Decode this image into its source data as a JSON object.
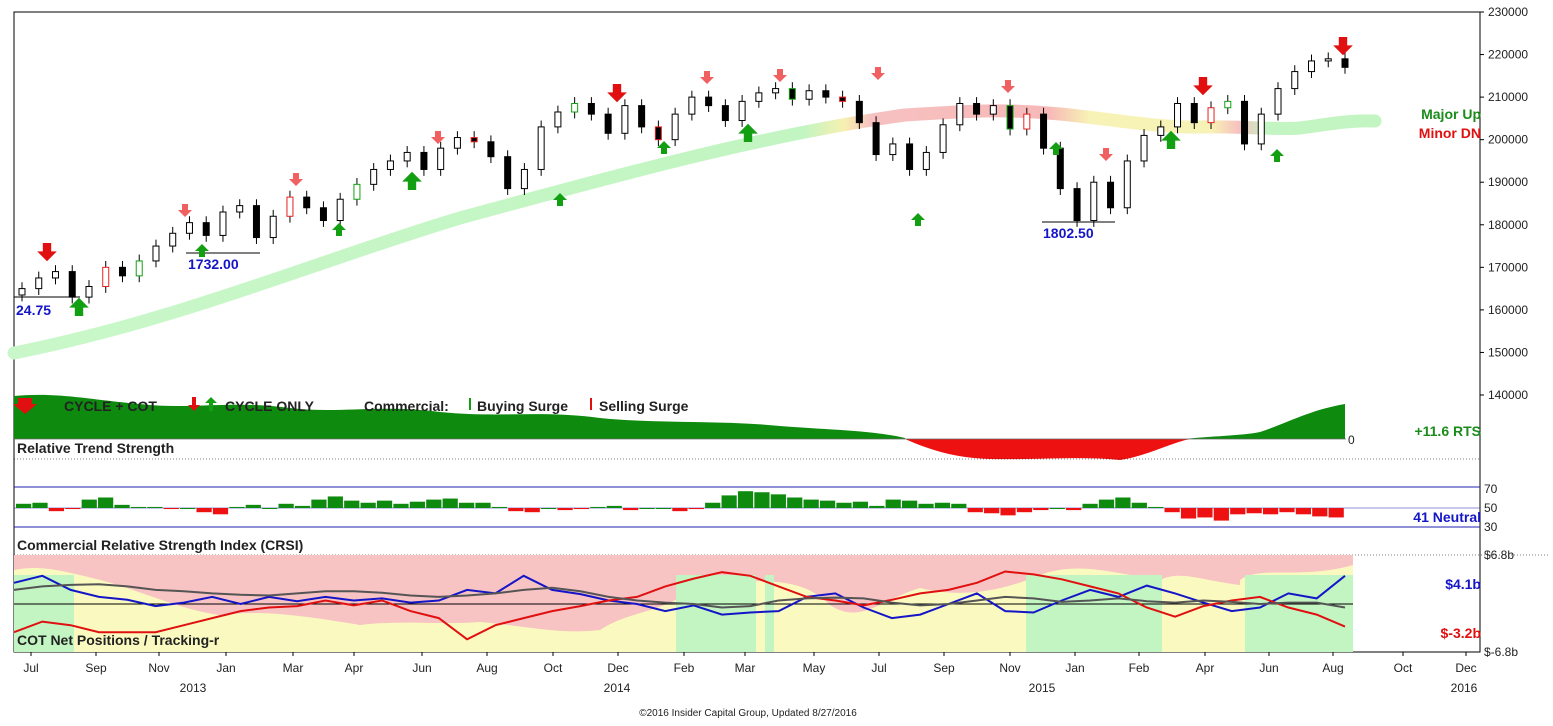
{
  "chart_data": {
    "type": "candlestick",
    "title": "",
    "footer": "©2016 Insider Capital Group, Updated 8/27/2016",
    "price_axis": {
      "ticks": [
        "230000",
        "220000",
        "210000",
        "200000",
        "190000",
        "180000",
        "170000",
        "160000",
        "150000",
        "140000"
      ],
      "ylim": [
        130000,
        230000
      ]
    },
    "time_axis": {
      "months": [
        "Jul",
        "Sep",
        "Nov",
        "Jan",
        "Mar",
        "Apr",
        "Jun",
        "Aug",
        "Oct",
        "Dec",
        "Feb",
        "Mar",
        "May",
        "Jul",
        "Sep",
        "Nov",
        "Jan",
        "Feb",
        "Apr",
        "Jun",
        "Aug",
        "Oct",
        "Dec"
      ],
      "years": [
        "2013",
        "2014",
        "2015",
        "2016"
      ]
    },
    "price_series": [
      {
        "date": "2012-07",
        "close": 165000
      },
      {
        "date": "2012-07",
        "close": 167500
      },
      {
        "date": "2012-08",
        "close": 169000
      },
      {
        "date": "2012-08",
        "close": 163000
      },
      {
        "date": "2012-09",
        "close": 165500
      },
      {
        "date": "2012-09",
        "close": 170000
      },
      {
        "date": "2012-10",
        "close": 168000
      },
      {
        "date": "2012-10",
        "close": 171500
      },
      {
        "date": "2012-11",
        "close": 175000
      },
      {
        "date": "2012-11",
        "close": 178000
      },
      {
        "date": "2012-12",
        "close": 180500
      },
      {
        "date": "2012-12",
        "close": 177500
      },
      {
        "date": "2013-01",
        "close": 183000
      },
      {
        "date": "2013-01",
        "close": 184500
      },
      {
        "date": "2013-02",
        "close": 177000
      },
      {
        "date": "2013-02",
        "close": 182000
      },
      {
        "date": "2013-03",
        "close": 186500
      },
      {
        "date": "2013-03",
        "close": 184000
      },
      {
        "date": "2013-04",
        "close": 181000
      },
      {
        "date": "2013-04",
        "close": 186000
      },
      {
        "date": "2013-05",
        "close": 189500
      },
      {
        "date": "2013-05",
        "close": 193000
      },
      {
        "date": "2013-06",
        "close": 195000
      },
      {
        "date": "2013-06",
        "close": 197000
      },
      {
        "date": "2013-07",
        "close": 193000
      },
      {
        "date": "2013-07",
        "close": 198000
      },
      {
        "date": "2013-08",
        "close": 200500
      },
      {
        "date": "2013-08",
        "close": 199500
      },
      {
        "date": "2013-09",
        "close": 196000
      },
      {
        "date": "2013-09",
        "close": 188500
      },
      {
        "date": "2013-10",
        "close": 193000
      },
      {
        "date": "2013-10",
        "close": 203000
      },
      {
        "date": "2013-11",
        "close": 206500
      },
      {
        "date": "2013-11",
        "close": 208500
      },
      {
        "date": "2013-12",
        "close": 206000
      },
      {
        "date": "2013-12",
        "close": 201500
      },
      {
        "date": "2014-01",
        "close": 208000
      },
      {
        "date": "2014-01",
        "close": 203000
      },
      {
        "date": "2014-02",
        "close": 200000
      },
      {
        "date": "2014-02",
        "close": 206000
      },
      {
        "date": "2014-03",
        "close": 210000
      },
      {
        "date": "2014-03",
        "close": 208000
      },
      {
        "date": "2014-04",
        "close": 204500
      },
      {
        "date": "2014-04",
        "close": 209000
      },
      {
        "date": "2014-05",
        "close": 211000
      },
      {
        "date": "2014-05",
        "close": 212000
      },
      {
        "date": "2014-06",
        "close": 209500
      },
      {
        "date": "2014-06",
        "close": 211500
      },
      {
        "date": "2014-07",
        "close": 210000
      },
      {
        "date": "2014-07",
        "close": 209000
      },
      {
        "date": "2014-08",
        "close": 204000
      },
      {
        "date": "2014-08",
        "close": 196500
      },
      {
        "date": "2014-09",
        "close": 199000
      },
      {
        "date": "2014-09",
        "close": 193000
      },
      {
        "date": "2014-10",
        "close": 197000
      },
      {
        "date": "2014-10",
        "close": 203500
      },
      {
        "date": "2014-11",
        "close": 208500
      },
      {
        "date": "2014-11",
        "close": 206000
      },
      {
        "date": "2014-12",
        "close": 208000
      },
      {
        "date": "2014-12",
        "close": 202500
      },
      {
        "date": "2015-01",
        "close": 206000
      },
      {
        "date": "2015-01",
        "close": 198000
      },
      {
        "date": "2015-02",
        "close": 188500
      },
      {
        "date": "2015-02",
        "close": 181000
      },
      {
        "date": "2015-03",
        "close": 190000
      },
      {
        "date": "2015-03",
        "close": 184000
      },
      {
        "date": "2015-04",
        "close": 195000
      },
      {
        "date": "2015-04",
        "close": 201000
      },
      {
        "date": "2015-05",
        "close": 203000
      },
      {
        "date": "2015-05",
        "close": 208500
      },
      {
        "date": "2015-06",
        "close": 204000
      },
      {
        "date": "2015-06",
        "close": 207500
      },
      {
        "date": "2015-07",
        "close": 209000
      },
      {
        "date": "2015-07",
        "close": 199000
      },
      {
        "date": "2015-08",
        "close": 206000
      },
      {
        "date": "2015-08",
        "close": 212000
      },
      {
        "date": "2015-09",
        "close": 216000
      },
      {
        "date": "2015-09",
        "close": 218500
      },
      {
        "date": "2015-10",
        "close": 219000
      },
      {
        "date": "2015-10",
        "close": 217000
      }
    ],
    "moving_average_label": [
      "Major Up",
      "Minor DN"
    ],
    "price_annotations": [
      "24.75",
      "1732.00",
      "1802.50"
    ],
    "rts_pane": {
      "legend": [
        "CYCLE + COT",
        "CYCLE ONLY",
        "Commercial:",
        "Buying Surge",
        "Selling Surge"
      ],
      "value_label": "+11.6 RTS",
      "zero_label": "0"
    },
    "relative_trend_strength": {
      "title": "Relative Trend Strength",
      "ticks": [
        "70",
        "50",
        "30"
      ],
      "value_label": "41 Neutral",
      "center": 50,
      "values": [
        54,
        55,
        47,
        49,
        58,
        60,
        53,
        51,
        51,
        49,
        50,
        46,
        44,
        51,
        53,
        50,
        54,
        52,
        58,
        61,
        57,
        55,
        57,
        54,
        56,
        58,
        59,
        55,
        55,
        51,
        47,
        46,
        50,
        48,
        49,
        51,
        52,
        48,
        50,
        50,
        47,
        49,
        55,
        62,
        66,
        65,
        63,
        60,
        58,
        57,
        55,
        56,
        52,
        58,
        57,
        54,
        55,
        54,
        46,
        45,
        43,
        46,
        48,
        50,
        48,
        54,
        58,
        60,
        55,
        51,
        46,
        40,
        41,
        38,
        44,
        45,
        44,
        46,
        44,
        42,
        41
      ]
    },
    "crsi": {
      "title": "Commercial Relative Strength Index (CRSI)",
      "ticks": [
        "$6.8b",
        "$-6.8b"
      ],
      "value_top": "$4.1b",
      "value_bottom": "$-3.2b",
      "bottom_title": "COT Net Positions / Tracking-r",
      "series": [
        {
          "name": "",
          "color": "#1515c8",
          "values": [
            3,
            4,
            2,
            1,
            0.6,
            -0.3,
            0.2,
            1,
            0,
            1,
            0.4,
            1,
            0.5,
            0.8,
            0.2,
            0.5,
            2,
            1.5,
            4,
            2,
            1.4,
            0.5,
            0,
            -1,
            -0.2,
            -1.5,
            -1.2,
            -1,
            1,
            1.5,
            -0.5,
            -2,
            -1.5,
            0,
            1.5,
            -1,
            -1.2,
            0.5,
            2,
            1,
            2.6,
            1.5,
            0.2,
            -1,
            -0.5,
            1.5,
            0.8,
            4
          ]
        },
        {
          "name": "",
          "color": "#e01010",
          "values": [
            -4,
            -2.5,
            -3,
            -4,
            -4,
            -4,
            -3,
            -2,
            -1,
            -0.5,
            -0.3,
            0.5,
            -0.2,
            0.5,
            -1,
            -2,
            -5,
            -3,
            -2,
            -1,
            -0.3,
            0.5,
            1,
            2.5,
            3.6,
            4.5,
            4,
            2.5,
            1,
            0.5,
            -0.2,
            0.6,
            1.5,
            2,
            3,
            4.6,
            4.2,
            3.5,
            2.5,
            1.5,
            -0.5,
            -1.8,
            -0.3,
            0.5,
            1,
            -0.5,
            -1.5,
            -3.2
          ]
        },
        {
          "name": "",
          "color": "#555555",
          "values": [
            2,
            2.5,
            2.7,
            2.8,
            2.5,
            2,
            1.8,
            1.5,
            1.3,
            1.2,
            1.5,
            1.8,
            1.8,
            1.6,
            1.2,
            1,
            1.2,
            1.5,
            2,
            2.3,
            1.8,
            1,
            0.5,
            0.2,
            0,
            -0.5,
            -0.3,
            0.5,
            0.8,
            0.9,
            0.8,
            0.2,
            -0.2,
            0,
            0.5,
            1,
            0.8,
            0.3,
            0.5,
            0.8,
            0.4,
            0.2,
            0.5,
            0.3,
            0,
            0.2,
            0.2,
            -0.5
          ]
        }
      ]
    },
    "colors": {
      "up_candle": "#ffffff",
      "down_candle": "#000000",
      "green_signal": "#12a012",
      "red_signal": "#e82020",
      "ma_green": "#b8f5b8",
      "ma_red": "#f7b7b7",
      "rts_positive": "#0e8a0e",
      "rts_negative": "#ee1111"
    }
  }
}
